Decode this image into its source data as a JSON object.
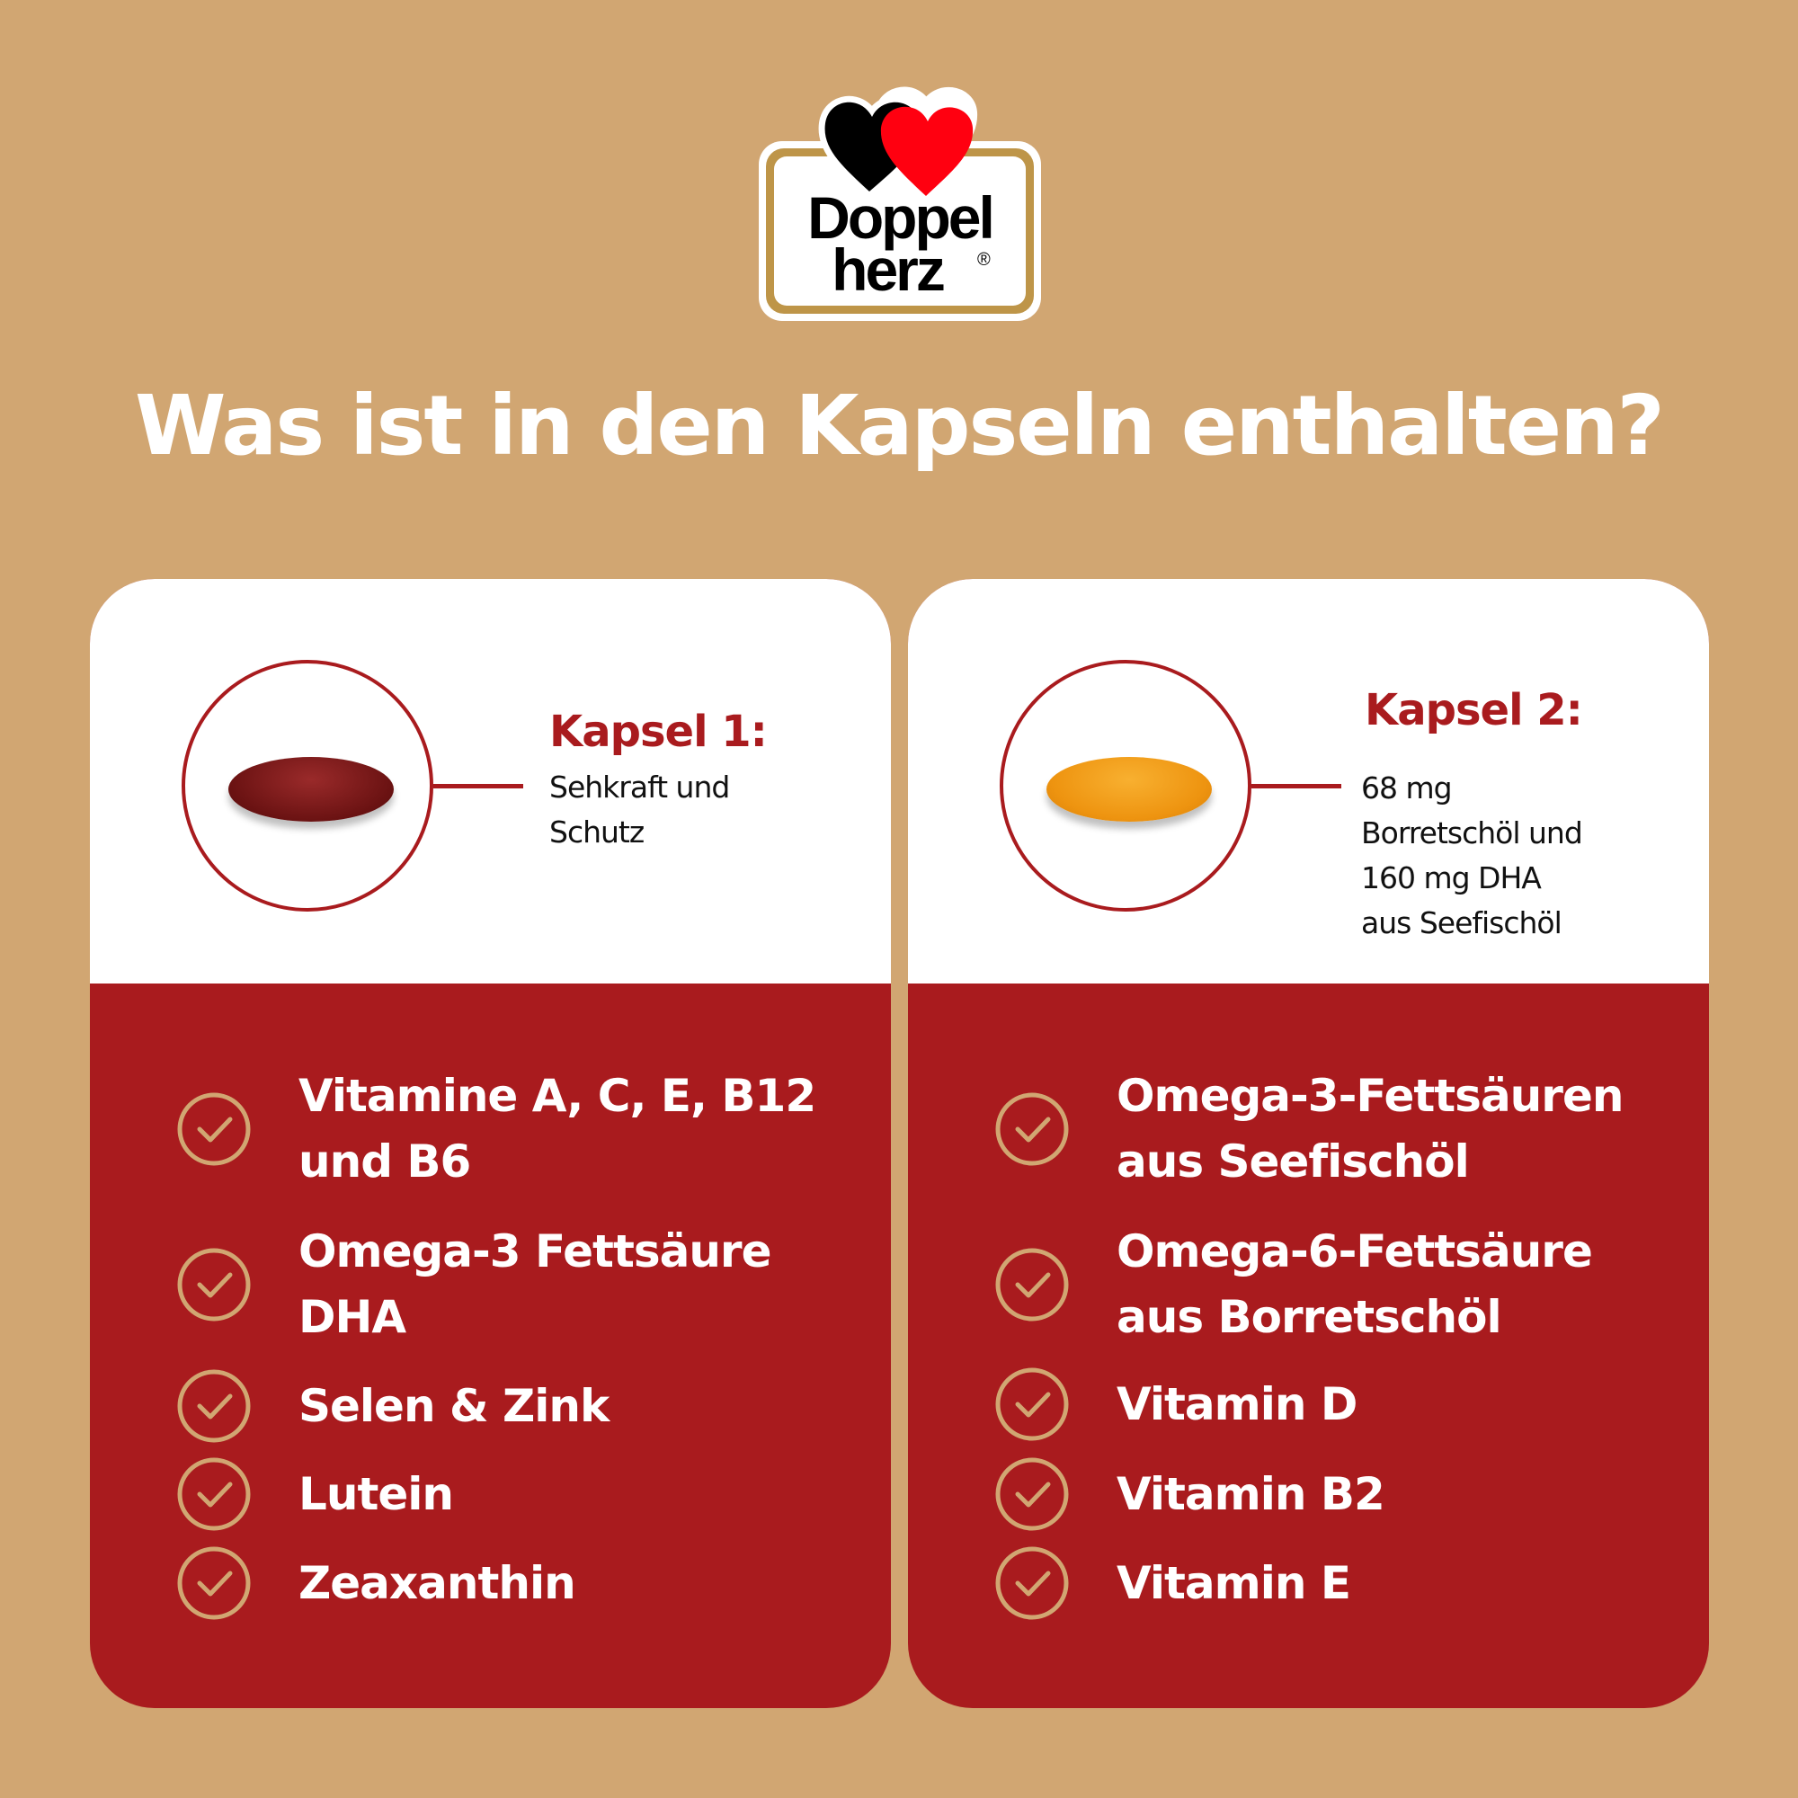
{
  "brand": {
    "logo_text_line1": "Doppel",
    "logo_text_line2": "herz",
    "registered": "®"
  },
  "title": "Was ist in den Kapseln enthalten?",
  "colors": {
    "background": "#D1A672",
    "accent_red": "#A91B1E",
    "check": "#D1A672",
    "capsule1": "#7A1515",
    "capsule2": "#F09A12"
  },
  "cards": [
    {
      "heading": "Kapsel 1:",
      "description": [
        "Sehkraft und",
        "Schutz"
      ],
      "items": [
        [
          "Vitamine A, C, E, B12",
          "und B6"
        ],
        [
          "Omega-3 Fettsäure",
          "DHA"
        ],
        [
          "Selen & Zink"
        ],
        [
          "Lutein"
        ],
        [
          "Zeaxanthin"
        ]
      ]
    },
    {
      "heading": "Kapsel 2:",
      "description": [
        "68 mg",
        "Borretschöl und",
        "160 mg DHA",
        "aus Seefischöl"
      ],
      "items": [
        [
          "Omega-3-Fettsäuren",
          "aus Seefischöl"
        ],
        [
          "Omega-6-Fettsäure",
          "aus Borretschöl"
        ],
        [
          "Vitamin D"
        ],
        [
          "Vitamin B2"
        ],
        [
          "Vitamin E"
        ]
      ]
    }
  ]
}
